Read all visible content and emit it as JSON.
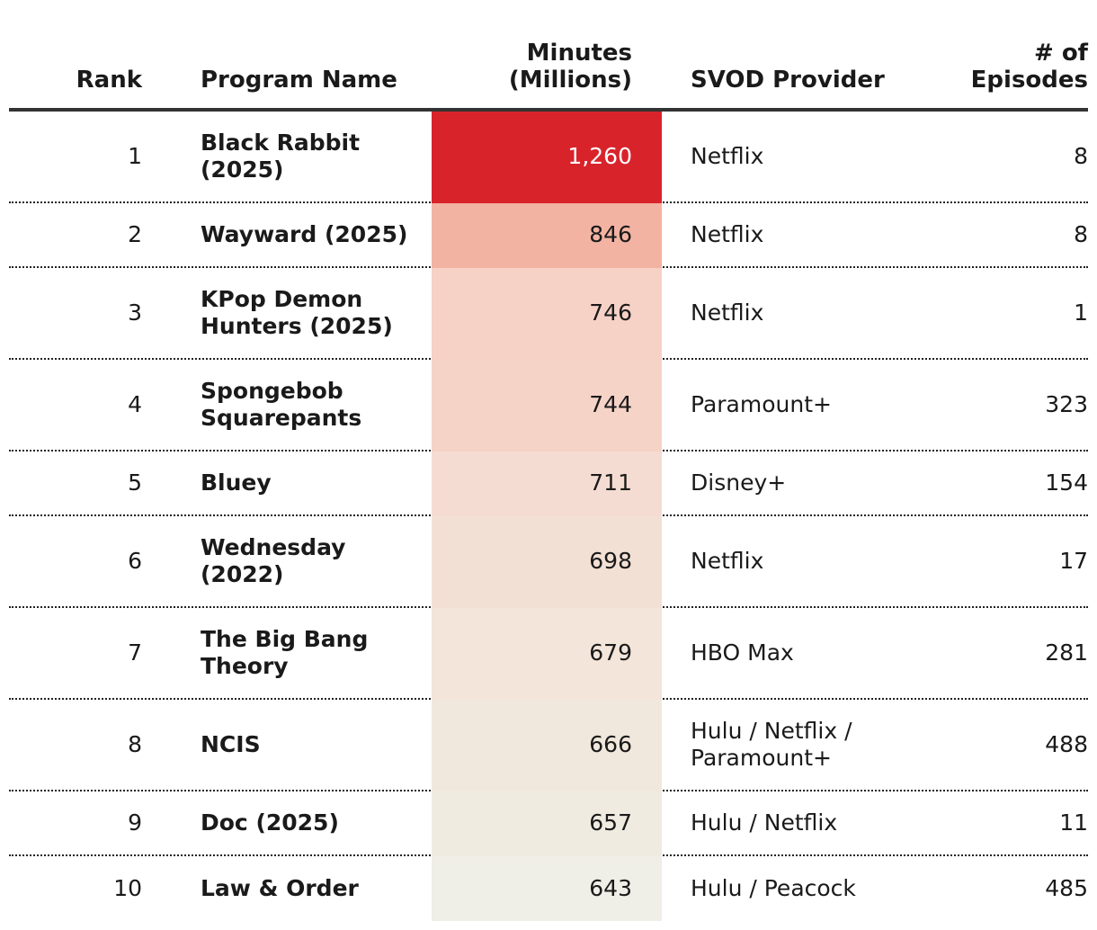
{
  "chart_data": {
    "type": "table",
    "columns": [
      "Rank",
      "Program Name",
      "Minutes\n(Millions)",
      "SVOD Provider",
      "# of\nEpisodes"
    ],
    "rows": [
      {
        "rank": "1",
        "program": "Black Rabbit (2025)",
        "minutes": "1,260",
        "provider": "Netflix",
        "episodes": "8",
        "fill": "#d9232b",
        "text": "#ffffff"
      },
      {
        "rank": "2",
        "program": "Wayward (2025)",
        "minutes": "846",
        "provider": "Netflix",
        "episodes": "8",
        "fill": "#f3b3a3",
        "text": "#1a1a1a"
      },
      {
        "rank": "3",
        "program": "KPop Demon Hunters (2025)",
        "minutes": "746",
        "provider": "Netflix",
        "episodes": "1",
        "fill": "#f6d1c6",
        "text": "#1a1a1a"
      },
      {
        "rank": "4",
        "program": "Spongebob Squarepants",
        "minutes": "744",
        "provider": "Paramount+",
        "episodes": "323",
        "fill": "#f6d3c7",
        "text": "#1a1a1a"
      },
      {
        "rank": "5",
        "program": "Bluey",
        "minutes": "711",
        "provider": "Disney+",
        "episodes": "154",
        "fill": "#f5dcd2",
        "text": "#1a1a1a"
      },
      {
        "rank": "6",
        "program": "Wednesday (2022)",
        "minutes": "698",
        "provider": "Netflix",
        "episodes": "17",
        "fill": "#f3e0d5",
        "text": "#1a1a1a"
      },
      {
        "rank": "7",
        "program": "The Big Bang Theory",
        "minutes": "679",
        "provider": "HBO Max",
        "episodes": "281",
        "fill": "#f3e5da",
        "text": "#1a1a1a"
      },
      {
        "rank": "8",
        "program": "NCIS",
        "minutes": "666",
        "provider": "Hulu / Netflix / Paramount+",
        "episodes": "488",
        "fill": "#f1e8dd",
        "text": "#1a1a1a"
      },
      {
        "rank": "9",
        "program": "Doc (2025)",
        "minutes": "657",
        "provider": "Hulu / Netflix",
        "episodes": "11",
        "fill": "#f0ebe1",
        "text": "#1a1a1a"
      },
      {
        "rank": "10",
        "program": "Law & Order",
        "minutes": "643",
        "provider": "Hulu / Peacock",
        "episodes": "485",
        "fill": "#efeee7",
        "text": "#1a1a1a"
      }
    ],
    "value_key": "minutes",
    "title": "",
    "xlabel": "",
    "ylabel": ""
  }
}
